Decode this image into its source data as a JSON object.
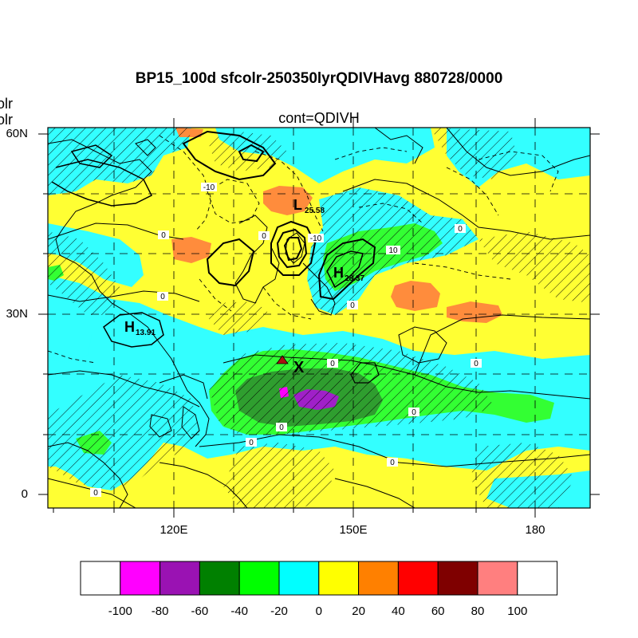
{
  "header": {
    "title": "BP15_100d sfcolr-250350lyrQDIVHavg  880728/0000",
    "subtitle": "cont=QDIVH",
    "left_cut_labels": [
      "olr",
      "olr"
    ]
  },
  "map": {
    "lat_labels": [
      "60N",
      "30N",
      "0"
    ],
    "lon_labels": [
      "120E",
      "150E",
      "180"
    ],
    "markers": {
      "low": {
        "letter": "L",
        "value": "25.58"
      },
      "high_center": {
        "letter": "H",
        "value": "28.37"
      },
      "high_west": {
        "letter": "H",
        "value": "13.91"
      },
      "x_mark": "X"
    },
    "contour_labels": [
      "0",
      "0",
      "0",
      "0",
      "0",
      "0",
      "0",
      "0",
      "0",
      "0",
      "0",
      "0",
      "-10",
      "-10",
      "10"
    ],
    "colors": {
      "cyan": "#33ffff",
      "yellow": "#ffff33",
      "orange": "#ff8c3c",
      "light_green": "#33ff33",
      "dark_green": "#2fa02f",
      "purple": "#a020c8",
      "magenta": "#ff00ff",
      "marker_red": "#aa1111"
    }
  },
  "colorbar": {
    "labels": [
      "-100",
      "-80",
      "-60",
      "-40",
      "-20",
      "0",
      "20",
      "40",
      "60",
      "80",
      "100"
    ],
    "colors": [
      "#ffffff",
      "#ff00ff",
      "#9a12b3",
      "#008000",
      "#00ff00",
      "#00ffff",
      "#ffff00",
      "#ff8000",
      "#ff0000",
      "#7f0000",
      "#ff7f7f",
      "#ffffff"
    ]
  }
}
